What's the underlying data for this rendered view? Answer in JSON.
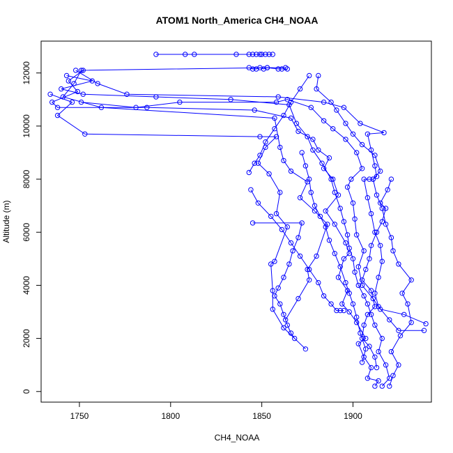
{
  "chart_data": {
    "type": "line",
    "title": "ATOM1 North_America CH4_NOAA",
    "xlabel": "CH4_NOAA",
    "ylabel": "Altitude (m)",
    "xlim": [
      1729,
      1943
    ],
    "ylim": [
      -400,
      13200
    ],
    "x_ticks": [
      1750,
      1800,
      1850,
      1900
    ],
    "y_ticks": [
      0,
      2000,
      4000,
      6000,
      8000,
      10000,
      12000
    ],
    "grid": false,
    "legend": "none",
    "marker": "open-circle",
    "color": "#0000ff",
    "series": [
      {
        "values": [
          [
            1874,
            1600
          ],
          [
            1862,
            2400
          ],
          [
            1856,
            3100
          ],
          [
            1856,
            3800
          ],
          [
            1855,
            4800
          ],
          [
            1857,
            4900
          ],
          [
            1864,
            6200
          ],
          [
            1858,
            6700
          ],
          [
            1860,
            7500
          ],
          [
            1854,
            8200
          ],
          [
            1848,
            8600
          ],
          [
            1852,
            9200
          ],
          [
            1858,
            9600
          ],
          [
            1849,
            9600
          ],
          [
            1753,
            9700
          ],
          [
            1738,
            10400
          ],
          [
            1746,
            10900
          ],
          [
            1734,
            11200
          ]
        ]
      },
      {
        "values": [
          [
            1863,
            2700
          ],
          [
            1870,
            3500
          ],
          [
            1876,
            4200
          ],
          [
            1875,
            4600
          ],
          [
            1880,
            5100
          ],
          [
            1886,
            6300
          ],
          [
            1879,
            6800
          ],
          [
            1871,
            7300
          ],
          [
            1875,
            7900
          ],
          [
            1866,
            8300
          ],
          [
            1862,
            8700
          ],
          [
            1860,
            9200
          ],
          [
            1857,
            10300
          ],
          [
            1762,
            10700
          ],
          [
            1741,
            11100
          ],
          [
            1747,
            11600
          ],
          [
            1751,
            12100
          ],
          [
            1853,
            12200
          ],
          [
            1863,
            12200
          ]
        ]
      },
      {
        "values": [
          [
            1912,
            200
          ],
          [
            1914,
            400
          ],
          [
            1908,
            500
          ],
          [
            1910,
            900
          ],
          [
            1906,
            1300
          ],
          [
            1903,
            1800
          ],
          [
            1907,
            2000
          ],
          [
            1902,
            2600
          ],
          [
            1898,
            3000
          ],
          [
            1894,
            3300
          ],
          [
            1897,
            3800
          ],
          [
            1892,
            4300
          ],
          [
            1895,
            5000
          ],
          [
            1898,
            5200
          ],
          [
            1896,
            5600
          ],
          [
            1890,
            6300
          ],
          [
            1885,
            6800
          ],
          [
            1892,
            7400
          ],
          [
            1889,
            8000
          ],
          [
            1884,
            8400
          ],
          [
            1887,
            8800
          ],
          [
            1881,
            9100
          ],
          [
            1878,
            9500
          ],
          [
            1870,
            9800
          ],
          [
            1866,
            10300
          ],
          [
            1846,
            10600
          ],
          [
            1787,
            10700
          ],
          [
            1738,
            10700
          ],
          [
            1735,
            10900
          ],
          [
            1749,
            11300
          ],
          [
            1744,
            11700
          ],
          [
            1752,
            12100
          ]
        ]
      },
      {
        "values": [
          [
            1916,
            200
          ],
          [
            1920,
            500
          ],
          [
            1918,
            1000
          ],
          [
            1914,
            1500
          ],
          [
            1916,
            2000
          ],
          [
            1912,
            2500
          ],
          [
            1910,
            2900
          ],
          [
            1908,
            3300
          ],
          [
            1906,
            3600
          ],
          [
            1903,
            4000
          ],
          [
            1901,
            4500
          ],
          [
            1900,
            5000
          ],
          [
            1898,
            5400
          ],
          [
            1897,
            5900
          ],
          [
            1895,
            6400
          ],
          [
            1893,
            6900
          ],
          [
            1890,
            7500
          ],
          [
            1888,
            8000
          ],
          [
            1883,
            8600
          ],
          [
            1878,
            9100
          ],
          [
            1875,
            9600
          ],
          [
            1869,
            10100
          ],
          [
            1865,
            10800
          ],
          [
            1833,
            11000
          ],
          [
            1792,
            11100
          ],
          [
            1752,
            11200
          ],
          [
            1740,
            11400
          ],
          [
            1757,
            11700
          ],
          [
            1743,
            11900
          ]
        ]
      },
      {
        "values": [
          [
            1920,
            200
          ],
          [
            1922,
            600
          ],
          [
            1925,
            1000
          ],
          [
            1921,
            1500
          ],
          [
            1926,
            2100
          ],
          [
            1932,
            2600
          ],
          [
            1930,
            3300
          ],
          [
            1927,
            3700
          ],
          [
            1932,
            4200
          ],
          [
            1925,
            4800
          ],
          [
            1922,
            5300
          ],
          [
            1921,
            5800
          ],
          [
            1918,
            6300
          ],
          [
            1916,
            6900
          ],
          [
            1913,
            7400
          ],
          [
            1911,
            8000
          ],
          [
            1915,
            8300
          ],
          [
            1912,
            8900
          ],
          [
            1905,
            9300
          ],
          [
            1900,
            9700
          ],
          [
            1896,
            10100
          ],
          [
            1891,
            10600
          ],
          [
            1888,
            10900
          ],
          [
            1880,
            11400
          ],
          [
            1881,
            11900
          ]
        ]
      },
      {
        "values": [
          [
            1940,
            2550
          ],
          [
            1928,
            2900
          ],
          [
            1915,
            3100
          ],
          [
            1911,
            3500
          ],
          [
            1905,
            4000
          ],
          [
            1903,
            4700
          ],
          [
            1906,
            5300
          ],
          [
            1902,
            5900
          ],
          [
            1901,
            6500
          ],
          [
            1900,
            7100
          ],
          [
            1897,
            7700
          ],
          [
            1899,
            8000
          ],
          [
            1905,
            8400
          ],
          [
            1902,
            9000
          ],
          [
            1896,
            9500
          ],
          [
            1889,
            9900
          ],
          [
            1884,
            10200
          ],
          [
            1877,
            10700
          ],
          [
            1864,
            11000
          ],
          [
            1858,
            10900
          ],
          [
            1805,
            10900
          ],
          [
            1781,
            10700
          ],
          [
            1751,
            10900
          ]
        ]
      },
      {
        "values": [
          [
            1939,
            2300
          ],
          [
            1925,
            2300
          ],
          [
            1920,
            2700
          ],
          [
            1914,
            3200
          ],
          [
            1912,
            3700
          ],
          [
            1914,
            4300
          ],
          [
            1916,
            4900
          ],
          [
            1915,
            5500
          ],
          [
            1912,
            6000
          ],
          [
            1910,
            6700
          ],
          [
            1908,
            7300
          ],
          [
            1906,
            8000
          ],
          [
            1909,
            8000
          ],
          [
            1911,
            8000
          ],
          [
            1913,
            8100
          ],
          [
            1912,
            8500
          ],
          [
            1910,
            9100
          ],
          [
            1908,
            9700
          ],
          [
            1917,
            9750
          ],
          [
            1904,
            10100
          ],
          [
            1895,
            10700
          ],
          [
            1884,
            10900
          ],
          [
            1859,
            11100
          ],
          [
            1776,
            11200
          ],
          [
            1760,
            11600
          ],
          [
            1748,
            12100
          ]
        ]
      },
      {
        "values": [
          [
            1921,
            8000
          ],
          [
            1919,
            7600
          ],
          [
            1915,
            7100
          ],
          [
            1918,
            6900
          ],
          [
            1916,
            6400
          ],
          [
            1913,
            6000
          ],
          [
            1910,
            5500
          ],
          [
            1909,
            5000
          ],
          [
            1907,
            4600
          ],
          [
            1905,
            4200
          ],
          [
            1910,
            3800
          ],
          [
            1912,
            3200
          ],
          [
            1908,
            2900
          ],
          [
            1906,
            2500
          ],
          [
            1905,
            2000
          ],
          [
            1909,
            1700
          ],
          [
            1912,
            1300
          ],
          [
            1913,
            900
          ]
        ]
      },
      {
        "values": [
          [
            1905,
            1100
          ],
          [
            1907,
            1600
          ],
          [
            1904,
            2200
          ],
          [
            1902,
            2800
          ],
          [
            1900,
            3300
          ],
          [
            1898,
            3700
          ],
          [
            1896,
            4100
          ],
          [
            1893,
            4700
          ],
          [
            1890,
            5200
          ],
          [
            1887,
            5700
          ],
          [
            1885,
            6200
          ],
          [
            1882,
            6600
          ],
          [
            1879,
            7000
          ],
          [
            1877,
            7500
          ],
          [
            1876,
            8000
          ],
          [
            1874,
            8500
          ],
          [
            1872,
            9000
          ]
        ]
      },
      {
        "values": [
          [
            1844,
            7600
          ],
          [
            1848,
            7100
          ],
          [
            1855,
            6600
          ],
          [
            1861,
            6100
          ],
          [
            1866,
            5600
          ],
          [
            1871,
            5100
          ],
          [
            1876,
            4600
          ],
          [
            1881,
            4100
          ],
          [
            1884,
            3600
          ],
          [
            1888,
            3300
          ],
          [
            1891,
            3050
          ],
          [
            1893,
            3050
          ],
          [
            1895,
            3050
          ]
        ]
      },
      {
        "values": [
          [
            1845,
            6350
          ],
          [
            1872,
            6350
          ],
          [
            1870,
            5800
          ],
          [
            1867,
            5300
          ],
          [
            1865,
            4800
          ],
          [
            1862,
            4300
          ],
          [
            1859,
            3900
          ],
          [
            1857,
            3600
          ],
          [
            1860,
            3300
          ],
          [
            1862,
            2900
          ],
          [
            1864,
            2500
          ],
          [
            1866,
            2200
          ],
          [
            1868,
            2000
          ]
        ]
      },
      {
        "values": [
          [
            1792,
            12700
          ],
          [
            1808,
            12700
          ],
          [
            1813,
            12700
          ],
          [
            1836,
            12700
          ],
          [
            1843,
            12700
          ],
          [
            1845,
            12700
          ],
          [
            1847,
            12700
          ],
          [
            1849,
            12700
          ],
          [
            1850,
            12700
          ],
          [
            1852,
            12700
          ],
          [
            1854,
            12700
          ],
          [
            1856,
            12700
          ]
        ]
      },
      {
        "values": [
          [
            1843,
            12200
          ],
          [
            1845,
            12150
          ],
          [
            1847,
            12150
          ],
          [
            1849,
            12200
          ],
          [
            1851,
            12150
          ],
          [
            1853,
            12200
          ],
          [
            1859,
            12150
          ],
          [
            1861,
            12150
          ],
          [
            1864,
            12150
          ]
        ]
      },
      {
        "values": [
          [
            1876,
            11900
          ],
          [
            1871,
            11400
          ],
          [
            1866,
            10900
          ],
          [
            1862,
            10400
          ],
          [
            1857,
            9900
          ],
          [
            1852,
            9400
          ],
          [
            1849,
            8900
          ],
          [
            1846,
            8600
          ],
          [
            1843,
            8250
          ]
        ]
      }
    ]
  }
}
